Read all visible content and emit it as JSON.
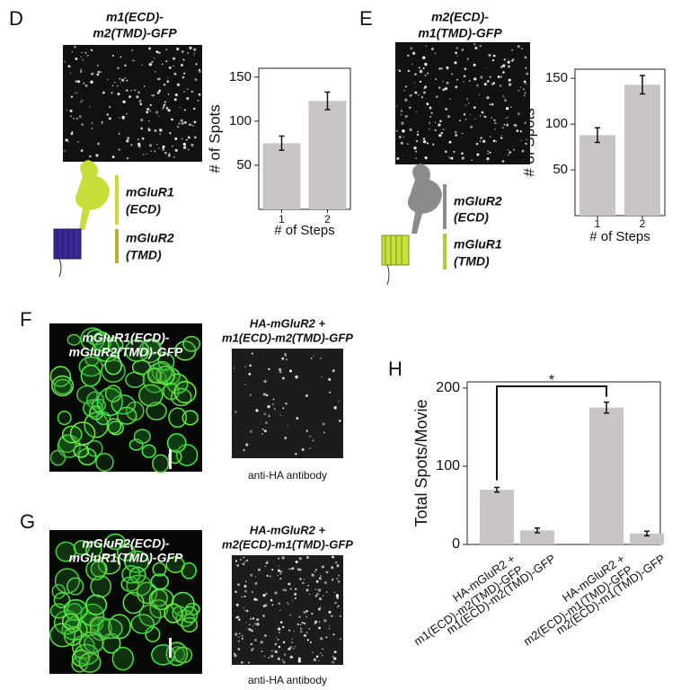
{
  "panels": {
    "D": {
      "letter": "D",
      "title": [
        "m1(ECD)-",
        "m2(TMD)-GFP"
      ],
      "legend": [
        [
          "mGluR1",
          "(ECD)"
        ],
        [
          "mGluR2",
          "(TMD)"
        ]
      ]
    },
    "E": {
      "letter": "E",
      "title": [
        "m2(ECD)-",
        "m1(TMD)-GFP"
      ],
      "legend": [
        [
          "mGluR2",
          "(ECD)"
        ],
        [
          "mGluR1",
          "(TMD)"
        ]
      ]
    },
    "F": {
      "letter": "F",
      "image_label": [
        "mGluR1(ECD)-",
        "mGluR2(TMD)-GFP"
      ],
      "title": [
        "HA-mGluR2 +",
        "m1(ECD)-m2(TMD)-GFP"
      ],
      "caption": "anti-HA antibody"
    },
    "G": {
      "letter": "G",
      "image_label": [
        "mGluR2(ECD)-",
        "mGluR1(TMD)-GFP"
      ],
      "title": [
        "HA-mGluR2 +",
        "m2(ECD)-m1(TMD)-GFP"
      ],
      "caption": "anti-HA antibody"
    },
    "H": {
      "letter": "H"
    }
  },
  "chart_data": [
    {
      "type": "bar",
      "categories": [
        "1",
        "2"
      ],
      "values": [
        75,
        123
      ],
      "errors": [
        8,
        10
      ],
      "color": "#c9c5c5",
      "ylim": [
        0,
        160
      ],
      "yticks": [
        50,
        100,
        150
      ],
      "xlabel": "# of Steps",
      "ylabel": "# of Spots"
    },
    {
      "type": "bar",
      "categories": [
        "1",
        "2"
      ],
      "values": [
        88,
        143
      ],
      "errors": [
        8,
        10
      ],
      "color": "#c9c5c5",
      "ylim": [
        0,
        160
      ],
      "yticks": [
        50,
        100,
        150
      ],
      "xlabel": "# of Steps",
      "ylabel": "# of Spots"
    },
    {
      "type": "bar",
      "categories": [
        "HA-mGluR2 +\nm1(ECD)-m2(TMD)-GFP",
        "m1(ECD)-m2(TMD)-GFP",
        "HA-mGluR2 +\nm2(ECD)-m1(TMD)-GFP",
        "m2(ECD)-m1(TMD)-GFP"
      ],
      "values": [
        70,
        18,
        175,
        14
      ],
      "errors": [
        3,
        3,
        7,
        3
      ],
      "color": "#c9c5c5",
      "ylim": [
        0,
        208
      ],
      "yticks": [
        0,
        100,
        200
      ],
      "ylabel": "Total Spots/Movie",
      "annotation": "*"
    }
  ]
}
